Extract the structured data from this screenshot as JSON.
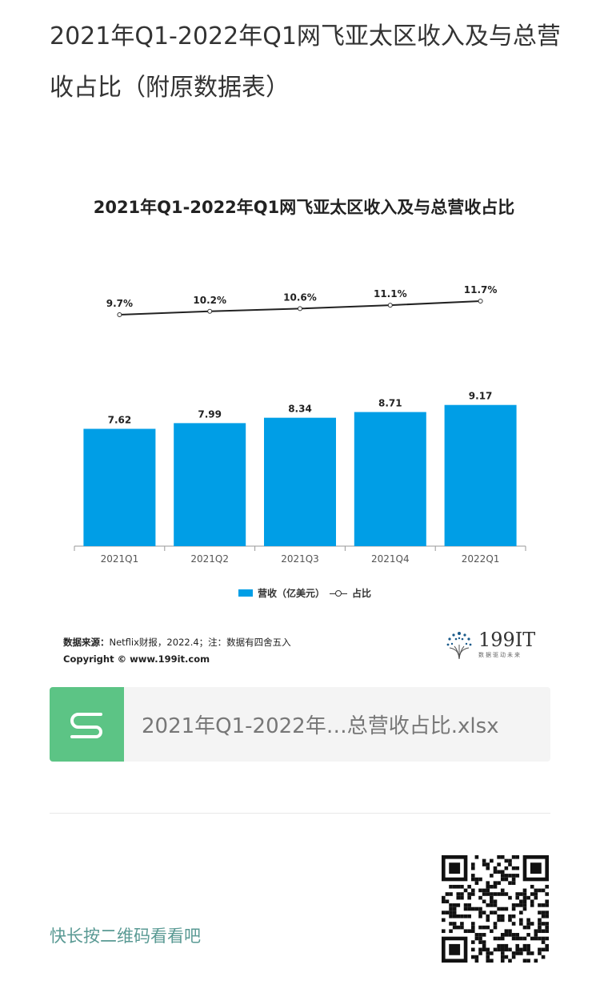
{
  "article": {
    "title": "2021年Q1-2022年Q1网飞亚太区收入及与总营收占比（附原数据表）"
  },
  "chart_data": {
    "type": "bar",
    "title": "2021年Q1-2022年Q1网飞亚太区收入及与总营收占比",
    "categories": [
      "2021Q1",
      "2021Q2",
      "2021Q3",
      "2021Q4",
      "2022Q1"
    ],
    "series": [
      {
        "name": "营收（亿美元）",
        "type": "bar",
        "values": [
          7.62,
          7.99,
          8.34,
          8.71,
          9.17
        ],
        "labels": [
          "7.62",
          "7.99",
          "8.34",
          "8.71",
          "9.17"
        ]
      },
      {
        "name": "占比",
        "type": "line",
        "values": [
          9.7,
          10.2,
          10.6,
          11.1,
          11.7
        ],
        "labels": [
          "9.7%",
          "10.2%",
          "10.6%",
          "11.1%",
          "11.7%"
        ]
      }
    ],
    "colors": {
      "bar": "#009ee6",
      "line": "#222222"
    },
    "legend_position": "bottom",
    "grid": false
  },
  "source": {
    "label": "数据来源：",
    "text": "Netflix财报，2022.4；注：数据有四舍五入",
    "copyright": "Copyright © www.199it.com"
  },
  "brand": {
    "name": "199IT",
    "tagline": "数据驱动未来"
  },
  "attachment": {
    "icon": "wps-sheet-icon",
    "name": "2021年Q1-2022年…总营收占比.xlsx",
    "color": "#5cc485"
  },
  "footer": {
    "qr_hint": "快长按二维码看看吧"
  }
}
